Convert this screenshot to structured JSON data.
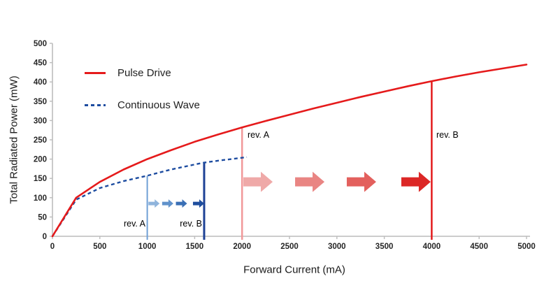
{
  "figure": {
    "background": "#ffffff"
  },
  "chart_data": {
    "type": "line",
    "title": "",
    "xlabel": "Forward Current (mA)",
    "ylabel": "Total Radiated Power (mW)",
    "xlim": [
      0,
      5000
    ],
    "ylim": [
      0,
      500
    ],
    "xticks": [
      0,
      500,
      1000,
      1500,
      2000,
      2500,
      3000,
      3500,
      4000,
      4500,
      5000
    ],
    "yticks": [
      0,
      50,
      100,
      150,
      200,
      250,
      300,
      350,
      400,
      450,
      500
    ],
    "grid": false,
    "legend_position": "top-left",
    "axis_color": "#bcbcbc",
    "tick_label_color": "#262626",
    "series": [
      {
        "name": "Pulse Drive",
        "style": "solid",
        "color": "#e51a1b",
        "x": [
          0,
          250,
          500,
          750,
          1000,
          1250,
          1500,
          1750,
          2000,
          2250,
          2500,
          2750,
          3000,
          3250,
          3500,
          3750,
          4000,
          4250,
          4500,
          4750,
          5000
        ],
        "y": [
          0,
          100,
          141,
          173,
          200,
          223,
          245,
          264,
          282,
          299,
          315,
          331,
          346,
          361,
          375,
          389,
          402,
          414,
          425,
          435,
          445
        ]
      },
      {
        "name": "Continuous Wave",
        "style": "dashed",
        "color": "#1d4ca0",
        "x": [
          0,
          250,
          500,
          750,
          1000,
          1250,
          1500,
          1600,
          1750,
          2050
        ],
        "y": [
          0,
          95,
          125,
          143,
          157,
          173,
          186,
          191,
          196,
          205
        ]
      }
    ],
    "annotations": {
      "cw_rev_a": {
        "label": "rev. A",
        "x": 1000,
        "y_top": 157,
        "color": "#6f9fd6"
      },
      "cw_rev_b": {
        "label": "rev. B",
        "x": 1600,
        "y_top": 191,
        "color": "#1e4296"
      },
      "pulse_rev_a": {
        "label": "rev. A",
        "x": 2000,
        "y_top": 282,
        "color": "#f19899"
      },
      "pulse_rev_b": {
        "label": "rev. B",
        "x": 4000,
        "y_top": 402,
        "color": "#e31b1c"
      },
      "cw_arrows": {
        "y": 85,
        "x_tips": [
          1130,
          1275,
          1420,
          1600
        ],
        "size": "small",
        "colors": [
          "#8fb4dc",
          "#6092cb",
          "#3a6fb5",
          "#1f4e9e"
        ]
      },
      "pulse_arrows": {
        "y": 141,
        "x_tips": [
          2323,
          2869,
          3414,
          3989
        ],
        "size": "large",
        "colors": [
          "#efa9a8",
          "#e98583",
          "#e3605d",
          "#dc2726"
        ]
      }
    }
  }
}
